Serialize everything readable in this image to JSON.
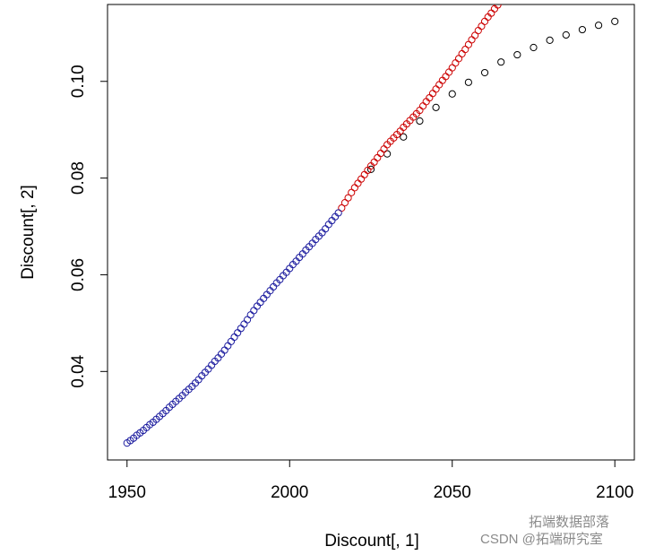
{
  "chart_data": {
    "type": "scatter",
    "x_label": "Discount[, 1]",
    "y_label": "Discount[, 2]",
    "xlim": [
      1944,
      2106
    ],
    "ylim": [
      0.0217,
      0.1159
    ],
    "xticks": [
      1950,
      2000,
      2050,
      2100
    ],
    "yticks": [
      0.04,
      0.06,
      0.08,
      {
        "value": 0.1,
        "label": "0.10"
      }
    ],
    "series": [
      {
        "color": "#000000",
        "x": [
          2025,
          2030,
          2035,
          2040,
          2045,
          2050,
          2055,
          2060,
          2065,
          2070,
          2075,
          2080,
          2085,
          2090,
          2095,
          2100
        ],
        "values": [
          0.0818,
          0.085,
          0.0885,
          0.0918,
          0.0946,
          0.0974,
          0.0998,
          0.1018,
          0.104,
          0.1055,
          0.107,
          0.1085,
          0.1096,
          0.1107,
          0.1116,
          0.1124
        ]
      },
      {
        "color": "#cc0000",
        "x": [
          2016,
          2017,
          2018,
          2019,
          2020,
          2021,
          2022,
          2023,
          2024,
          2025,
          2026,
          2027,
          2028,
          2029,
          2030,
          2031,
          2032,
          2033,
          2034,
          2035,
          2036,
          2037,
          2038,
          2039,
          2040,
          2041,
          2042,
          2043,
          2044,
          2045,
          2046,
          2047,
          2048,
          2049,
          2050,
          2051,
          2052,
          2053,
          2054,
          2055,
          2056,
          2057,
          2058,
          2059,
          2060,
          2061,
          2062,
          2063,
          2064
        ],
        "values": [
          0.0738,
          0.0749,
          0.0759,
          0.077,
          0.078,
          0.0789,
          0.0798,
          0.0807,
          0.0816,
          0.0825,
          0.0833,
          0.0842,
          0.0851,
          0.086,
          0.0869,
          0.0876,
          0.0883,
          0.089,
          0.0897,
          0.0905,
          0.0912,
          0.0919,
          0.0926,
          0.0933,
          0.094,
          0.0949,
          0.0958,
          0.0966,
          0.0975,
          0.0984,
          0.0993,
          0.1002,
          0.101,
          0.1019,
          0.1028,
          0.1038,
          0.1047,
          0.1057,
          0.1066,
          0.1076,
          0.1086,
          0.1095,
          0.1105,
          0.1114,
          0.1124,
          0.1133,
          0.1141,
          0.115,
          0.1158
        ]
      },
      {
        "color": "#1a1a9e",
        "x": [
          1950,
          1951,
          1952,
          1953,
          1954,
          1955,
          1956,
          1957,
          1958,
          1959,
          1960,
          1961,
          1962,
          1963,
          1964,
          1965,
          1966,
          1967,
          1968,
          1969,
          1970,
          1971,
          1972,
          1973,
          1974,
          1975,
          1976,
          1977,
          1978,
          1979,
          1980,
          1981,
          1982,
          1983,
          1984,
          1985,
          1986,
          1987,
          1988,
          1989,
          1990,
          1991,
          1992,
          1993,
          1994,
          1995,
          1996,
          1997,
          1998,
          1999,
          2000,
          2001,
          2002,
          2003,
          2004,
          2005,
          2006,
          2007,
          2008,
          2009,
          2010,
          2011,
          2012,
          2013,
          2014,
          2015
        ],
        "values": [
          0.0252,
          0.0257,
          0.0262,
          0.0268,
          0.0273,
          0.0278,
          0.0284,
          0.029,
          0.0295,
          0.0301,
          0.0307,
          0.0313,
          0.0319,
          0.0326,
          0.0332,
          0.0338,
          0.0344,
          0.035,
          0.0357,
          0.0363,
          0.0369,
          0.0376,
          0.0383,
          0.0391,
          0.0398,
          0.0405,
          0.0413,
          0.0421,
          0.0428,
          0.0436,
          0.0444,
          0.0453,
          0.0462,
          0.0471,
          0.048,
          0.0489,
          0.0498,
          0.0507,
          0.0517,
          0.0526,
          0.0535,
          0.0543,
          0.0551,
          0.0559,
          0.0567,
          0.0575,
          0.0583,
          0.059,
          0.0598,
          0.0605,
          0.0613,
          0.0621,
          0.0628,
          0.0636,
          0.0643,
          0.0651,
          0.0658,
          0.0665,
          0.0673,
          0.068,
          0.0687,
          0.0695,
          0.0704,
          0.0712,
          0.072,
          0.0728
        ]
      }
    ]
  },
  "watermark": {
    "account": "拓端数据部落",
    "source": "CSDN @拓端研究室"
  }
}
